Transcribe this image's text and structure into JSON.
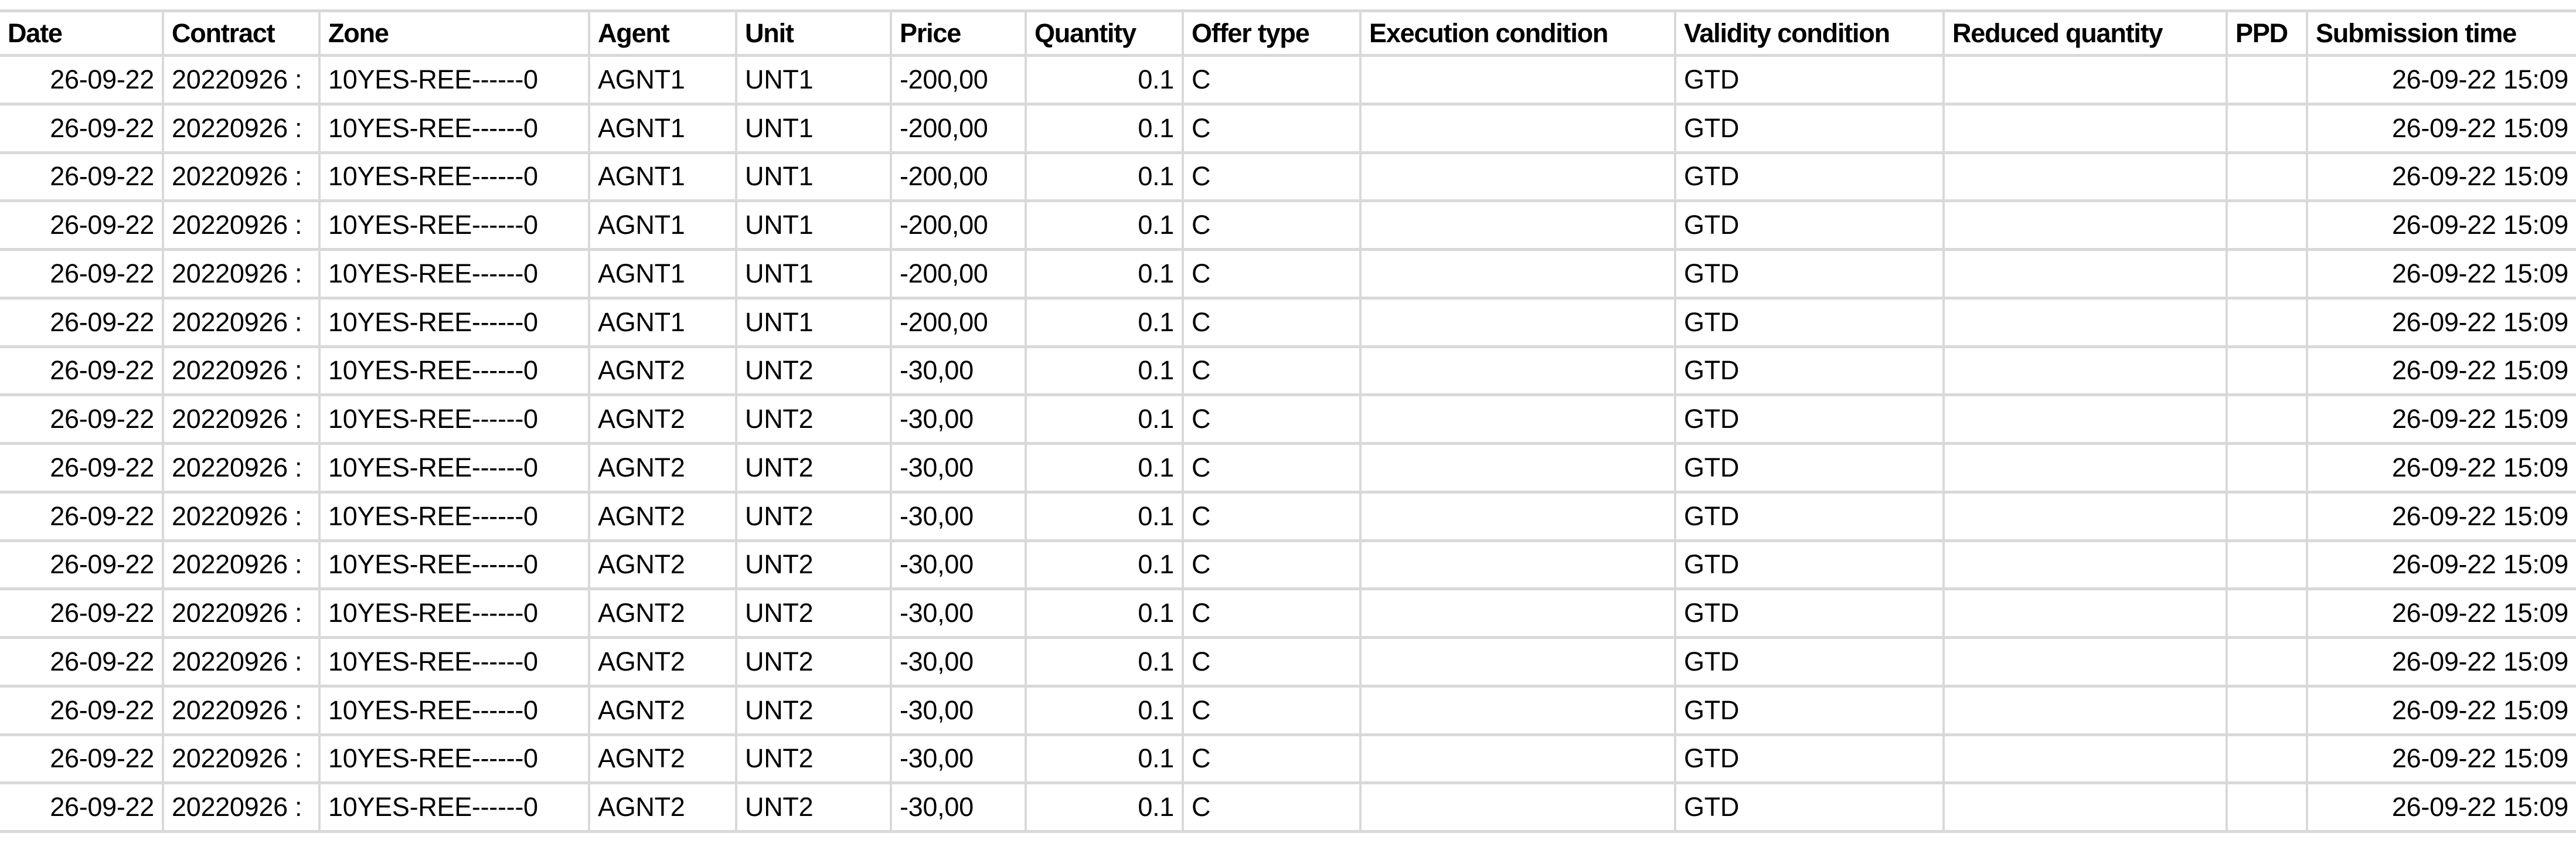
{
  "table": {
    "columns": [
      {
        "label": "Date",
        "align": "right"
      },
      {
        "label": "Contract",
        "align": "left"
      },
      {
        "label": "Zone",
        "align": "left"
      },
      {
        "label": "Agent",
        "align": "left"
      },
      {
        "label": "Unit",
        "align": "left"
      },
      {
        "label": "Price",
        "align": "left"
      },
      {
        "label": "Quantity",
        "align": "right"
      },
      {
        "label": "Offer type",
        "align": "left"
      },
      {
        "label": "Execution condition",
        "align": "left"
      },
      {
        "label": "Validity condition",
        "align": "left"
      },
      {
        "label": "Reduced quantity",
        "align": "left"
      },
      {
        "label": "PPD",
        "align": "left"
      },
      {
        "label": "Submission time",
        "align": "right"
      }
    ],
    "rows": [
      [
        "26-09-22",
        "20220926 :",
        "10YES-REE------0",
        "AGNT1",
        "UNT1",
        "-200,00",
        "0.1",
        "C",
        "",
        "GTD",
        "",
        "",
        "26-09-22 15:09"
      ],
      [
        "26-09-22",
        "20220926 :",
        "10YES-REE------0",
        "AGNT1",
        "UNT1",
        "-200,00",
        "0.1",
        "C",
        "",
        "GTD",
        "",
        "",
        "26-09-22 15:09"
      ],
      [
        "26-09-22",
        "20220926 :",
        "10YES-REE------0",
        "AGNT1",
        "UNT1",
        "-200,00",
        "0.1",
        "C",
        "",
        "GTD",
        "",
        "",
        "26-09-22 15:09"
      ],
      [
        "26-09-22",
        "20220926 :",
        "10YES-REE------0",
        "AGNT1",
        "UNT1",
        "-200,00",
        "0.1",
        "C",
        "",
        "GTD",
        "",
        "",
        "26-09-22 15:09"
      ],
      [
        "26-09-22",
        "20220926 :",
        "10YES-REE------0",
        "AGNT1",
        "UNT1",
        "-200,00",
        "0.1",
        "C",
        "",
        "GTD",
        "",
        "",
        "26-09-22 15:09"
      ],
      [
        "26-09-22",
        "20220926 :",
        "10YES-REE------0",
        "AGNT1",
        "UNT1",
        "-200,00",
        "0.1",
        "C",
        "",
        "GTD",
        "",
        "",
        "26-09-22 15:09"
      ],
      [
        "26-09-22",
        "20220926 :",
        "10YES-REE------0",
        "AGNT2",
        "UNT2",
        "-30,00",
        "0.1",
        "C",
        "",
        "GTD",
        "",
        "",
        "26-09-22 15:09"
      ],
      [
        "26-09-22",
        "20220926 :",
        "10YES-REE------0",
        "AGNT2",
        "UNT2",
        "-30,00",
        "0.1",
        "C",
        "",
        "GTD",
        "",
        "",
        "26-09-22 15:09"
      ],
      [
        "26-09-22",
        "20220926 :",
        "10YES-REE------0",
        "AGNT2",
        "UNT2",
        "-30,00",
        "0.1",
        "C",
        "",
        "GTD",
        "",
        "",
        "26-09-22 15:09"
      ],
      [
        "26-09-22",
        "20220926 :",
        "10YES-REE------0",
        "AGNT2",
        "UNT2",
        "-30,00",
        "0.1",
        "C",
        "",
        "GTD",
        "",
        "",
        "26-09-22 15:09"
      ],
      [
        "26-09-22",
        "20220926 :",
        "10YES-REE------0",
        "AGNT2",
        "UNT2",
        "-30,00",
        "0.1",
        "C",
        "",
        "GTD",
        "",
        "",
        "26-09-22 15:09"
      ],
      [
        "26-09-22",
        "20220926 :",
        "10YES-REE------0",
        "AGNT2",
        "UNT2",
        "-30,00",
        "0.1",
        "C",
        "",
        "GTD",
        "",
        "",
        "26-09-22 15:09"
      ],
      [
        "26-09-22",
        "20220926 :",
        "10YES-REE------0",
        "AGNT2",
        "UNT2",
        "-30,00",
        "0.1",
        "C",
        "",
        "GTD",
        "",
        "",
        "26-09-22 15:09"
      ],
      [
        "26-09-22",
        "20220926 :",
        "10YES-REE------0",
        "AGNT2",
        "UNT2",
        "-30,00",
        "0.1",
        "C",
        "",
        "GTD",
        "",
        "",
        "26-09-22 15:09"
      ],
      [
        "26-09-22",
        "20220926 :",
        "10YES-REE------0",
        "AGNT2",
        "UNT2",
        "-30,00",
        "0.1",
        "C",
        "",
        "GTD",
        "",
        "",
        "26-09-22 15:09"
      ],
      [
        "26-09-22",
        "20220926 :",
        "10YES-REE------0",
        "AGNT2",
        "UNT2",
        "-30,00",
        "0.1",
        "C",
        "",
        "GTD",
        "",
        "",
        "26-09-22 15:09"
      ]
    ]
  },
  "colors": {
    "gridline": "#d9d9d9",
    "text": "#000000",
    "background": "#ffffff"
  }
}
